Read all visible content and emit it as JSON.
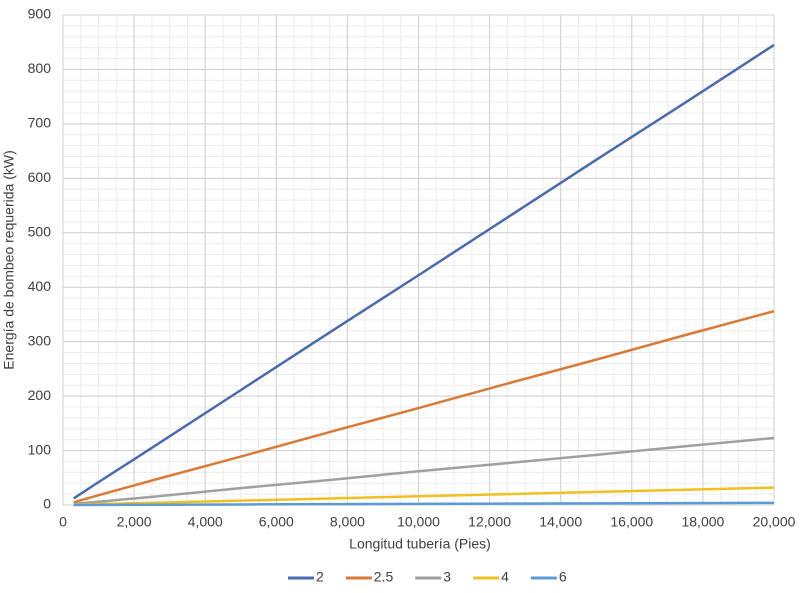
{
  "chart_data": {
    "type": "line",
    "x_label": "Longitud tubería (Pies)",
    "y_label": "Energía de bombeo requerida (kW)",
    "x": [
      300,
      1000,
      1500,
      2000,
      2500,
      5000,
      7500,
      10000,
      12500,
      15000,
      17500,
      20000
    ],
    "series": [
      {
        "name": "2",
        "color": "#4a6bb0",
        "values": [
          12,
          42,
          63,
          84,
          105,
          211,
          317,
          422,
          528,
          634,
          739,
          845
        ]
      },
      {
        "name": "2.5",
        "color": "#d97a35",
        "values": [
          5,
          18,
          27,
          36,
          45,
          89,
          134,
          178,
          223,
          267,
          312,
          356
        ]
      },
      {
        "name": "3",
        "color": "#a0a0a0",
        "values": [
          2,
          6,
          9,
          12,
          15,
          31,
          46,
          62,
          77,
          92,
          108,
          123
        ]
      },
      {
        "name": "4",
        "color": "#f0c020",
        "values": [
          0.5,
          2,
          2.4,
          3.2,
          4,
          8,
          12,
          16,
          20,
          24,
          28,
          32
        ]
      },
      {
        "name": "6",
        "color": "#5b9bd5",
        "values": [
          0.1,
          0.2,
          0.3,
          0.4,
          0.5,
          1,
          1.5,
          2,
          2.5,
          3,
          3.5,
          4
        ]
      }
    ],
    "xlim": [
      0,
      20000
    ],
    "xticks": [
      0,
      {
        "value": 2000,
        "label": "2,000"
      },
      {
        "value": 4000,
        "label": "4,000"
      },
      {
        "value": 6000,
        "label": "6,000"
      },
      {
        "value": 8000,
        "label": "8,000"
      },
      {
        "value": 10000,
        "label": "10,000"
      },
      {
        "value": 12000,
        "label": "12,000"
      },
      {
        "value": 14000,
        "label": "14,000"
      },
      {
        "value": 16000,
        "label": "16,000"
      },
      {
        "value": 18000,
        "label": "18,000"
      },
      {
        "value": 20000,
        "label": "20,000"
      }
    ],
    "ylim": [
      0,
      900
    ],
    "yticks": [
      0,
      100,
      200,
      300,
      400,
      500,
      600,
      700,
      800,
      900
    ],
    "grid": true,
    "minor_grid": {
      "x": 500,
      "y": 20
    },
    "legend": "bottom"
  }
}
